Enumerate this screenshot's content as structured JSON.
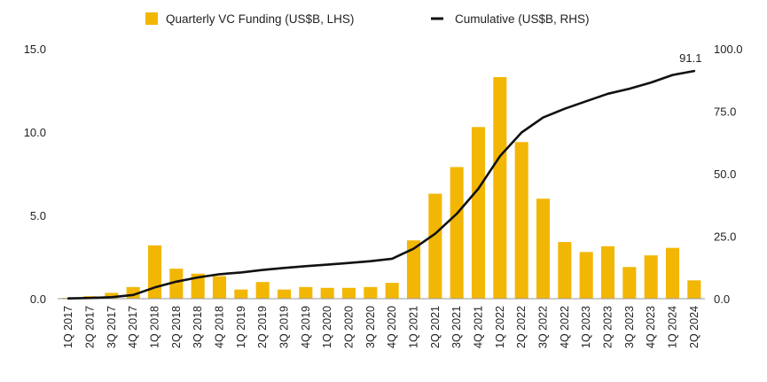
{
  "chart_data": {
    "type": "bar",
    "title": "",
    "xlabel": "",
    "ylabel": "",
    "categories": [
      "1Q 2017",
      "2Q 2017",
      "3Q 2017",
      "4Q 2017",
      "1Q 2018",
      "2Q 2018",
      "3Q 2018",
      "4Q 2018",
      "1Q 2019",
      "2Q 2019",
      "3Q 2019",
      "4Q 2019",
      "1Q 2020",
      "2Q 2020",
      "3Q 2020",
      "4Q 2020",
      "1Q 2021",
      "2Q 2021",
      "3Q 2021",
      "4Q 2021",
      "1Q 2022",
      "2Q 2022",
      "3Q 2022",
      "4Q 2022",
      "1Q 2023",
      "2Q 2023",
      "3Q 2023",
      "4Q 2023",
      "1Q 2024",
      "2Q 2024"
    ],
    "series": [
      {
        "name": "Quarterly VC Funding (US$B, LHS)",
        "type": "bar",
        "axis": "left",
        "color": "#F2B705",
        "values": [
          0.05,
          0.15,
          0.35,
          0.7,
          3.2,
          1.8,
          1.5,
          1.35,
          0.55,
          1.0,
          0.55,
          0.7,
          0.65,
          0.65,
          0.7,
          0.95,
          3.5,
          6.3,
          7.9,
          10.3,
          13.3,
          9.4,
          6.0,
          3.4,
          2.8,
          3.15,
          1.9,
          2.6,
          3.05,
          1.1
        ]
      },
      {
        "name": "Cumulative (US$B, RHS)",
        "type": "line",
        "axis": "right",
        "color": "#111111",
        "values": [
          0.1,
          0.3,
          0.6,
          1.5,
          4.5,
          6.8,
          8.5,
          9.8,
          10.5,
          11.5,
          12.3,
          13.0,
          13.6,
          14.3,
          15.0,
          16.0,
          20.0,
          26.0,
          34.0,
          44.0,
          57.0,
          66.5,
          72.5,
          76.0,
          79.0,
          82.0,
          84.0,
          86.5,
          89.5,
          91.1
        ]
      }
    ],
    "left_axis": {
      "min": 0,
      "max": 15,
      "ticks": [
        "0.0",
        "5.0",
        "10.0",
        "15.0"
      ],
      "tick_values": [
        0,
        5,
        10,
        15
      ]
    },
    "right_axis": {
      "min": 0,
      "max": 100,
      "ticks": [
        "0.0",
        "25.0",
        "50.0",
        "75.0",
        "100.0"
      ],
      "tick_values": [
        0,
        25,
        50,
        75,
        100
      ]
    },
    "annotations": [
      {
        "text": "91.1",
        "series": 1,
        "index": 29
      }
    ],
    "legend_position": "top-center",
    "grid": false
  }
}
